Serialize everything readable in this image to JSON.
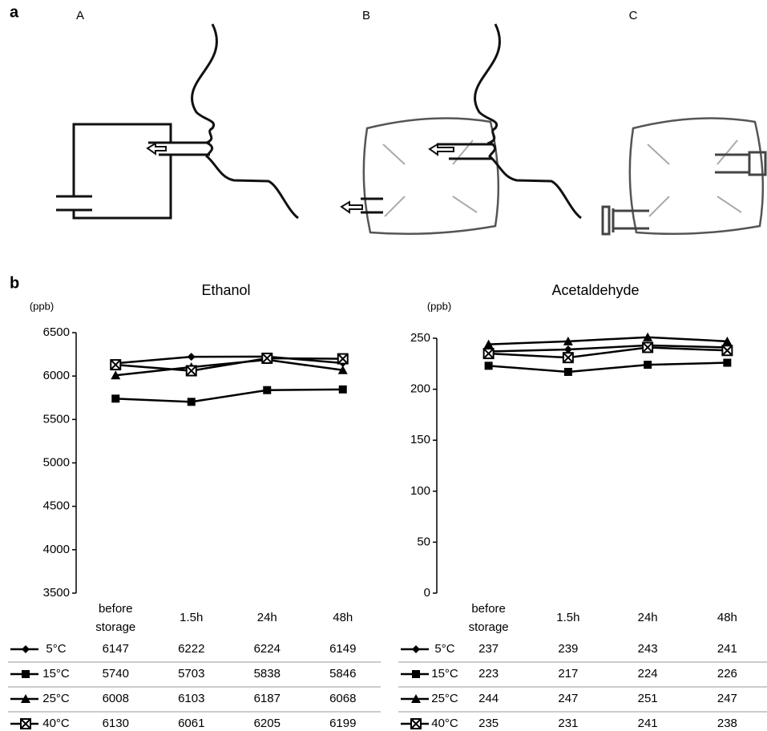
{
  "panel_labels": [
    "a",
    "b"
  ],
  "diagram_labels": [
    "A",
    "B",
    "C"
  ],
  "chart_data": [
    {
      "type": "line",
      "title": "Ethanol",
      "unit_label": "(ppb)",
      "categories": [
        "before storage",
        "1.5h",
        "24h",
        "48h"
      ],
      "series": [
        {
          "name": "5°C",
          "color": "#000000",
          "marker": "diamond",
          "values": [
            6147,
            6222,
            6224,
            6149
          ]
        },
        {
          "name": "15°C",
          "color": "#000000",
          "marker": "square",
          "values": [
            5740,
            5703,
            5838,
            5846
          ]
        },
        {
          "name": "25°C",
          "color": "#000000",
          "marker": "triangle",
          "values": [
            6008,
            6103,
            6187,
            6068
          ]
        },
        {
          "name": "40°C",
          "color": "#000000",
          "marker": "boxed-x",
          "values": [
            6130,
            6061,
            6205,
            6199
          ]
        }
      ],
      "ylim": [
        3500,
        6500
      ],
      "yticks": [
        3500,
        4000,
        4500,
        5000,
        5500,
        6000,
        6500
      ],
      "grid": false
    },
    {
      "type": "line",
      "title": "Acetaldehyde",
      "unit_label": "(ppb)",
      "categories": [
        "before storage",
        "1.5h",
        "24h",
        "48h"
      ],
      "series": [
        {
          "name": "5°C",
          "color": "#000000",
          "marker": "diamond",
          "values": [
            237,
            239,
            243,
            241
          ]
        },
        {
          "name": "15°C",
          "color": "#000000",
          "marker": "square",
          "values": [
            223,
            217,
            224,
            226
          ]
        },
        {
          "name": "25°C",
          "color": "#000000",
          "marker": "triangle",
          "values": [
            244,
            247,
            251,
            247
          ]
        },
        {
          "name": "40°C",
          "color": "#000000",
          "marker": "boxed-x",
          "values": [
            235,
            231,
            241,
            238
          ]
        }
      ],
      "ylim": [
        0,
        250
      ],
      "yticks": [
        0,
        50,
        100,
        150,
        200,
        250
      ],
      "grid": false
    }
  ]
}
